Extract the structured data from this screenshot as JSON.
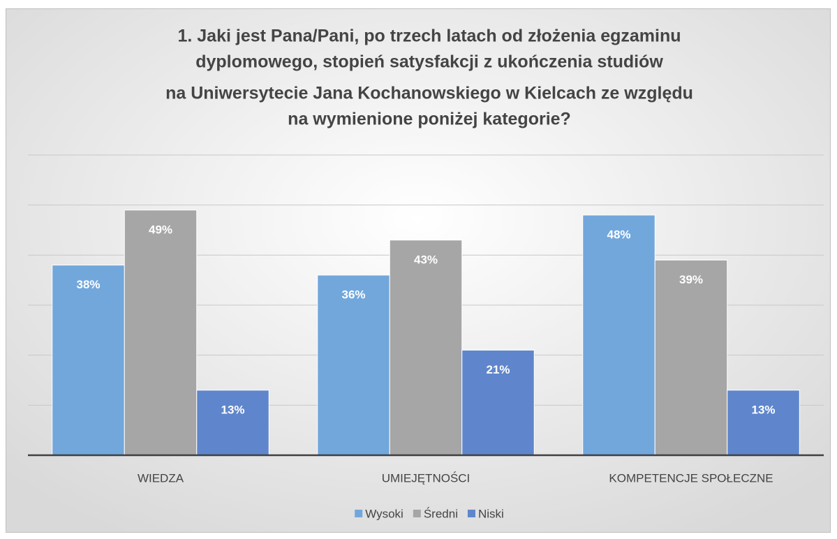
{
  "chart_data": {
    "type": "bar",
    "title": [
      "1. Jaki jest Pana/Pani, po trzech latach od złożenia egzaminu",
      "dyplomowego, stopień satysfakcji z ukończenia studiów",
      "na Uniwersytecie Jana Kochanowskiego w Kielcach ze względu",
      "na wymienione poniżej kategorie?"
    ],
    "categories": [
      "WIEDZA",
      "UMIEJĘTNOŚCI",
      "KOMPETENCJE SPOŁECZNE"
    ],
    "series": [
      {
        "name": "Wysoki",
        "color": "#72a7dc",
        "values": [
          38,
          36,
          48
        ],
        "value_labels": [
          "38%",
          "36%",
          "48%"
        ]
      },
      {
        "name": "Średni",
        "color": "#a6a6a6",
        "values": [
          49,
          43,
          39
        ],
        "value_labels": [
          "49%",
          "43%",
          "39%"
        ]
      },
      {
        "name": "Niski",
        "color": "#5f86cc",
        "values": [
          13,
          21,
          13
        ],
        "value_labels": [
          "13%",
          "21%",
          "13%"
        ]
      }
    ],
    "ylim": [
      0,
      60
    ],
    "yticks": [
      0,
      10,
      20,
      30,
      40,
      50,
      60
    ],
    "grid": true,
    "legend": "bottom"
  }
}
